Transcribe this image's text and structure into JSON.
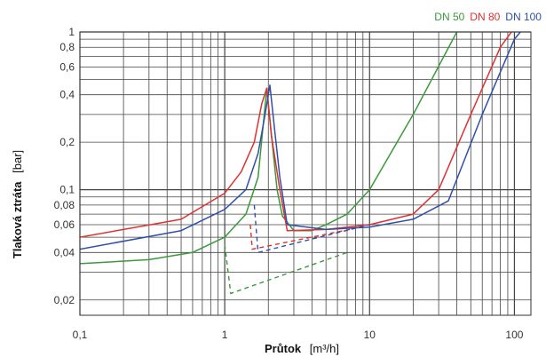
{
  "chart_data": {
    "type": "line",
    "x_scale": "log",
    "y_scale": "log",
    "xlim": [
      0.1,
      130
    ],
    "ylim": [
      0.016,
      1.0
    ],
    "grid": true,
    "legend_placement": "top-right",
    "xlabel": {
      "bold": "Průtok",
      "unit": "[m³/h]"
    },
    "ylabel": {
      "bold": "Tlaková ztráta",
      "unit": "[bar]"
    },
    "x_ticks": [
      {
        "value": 0.1,
        "label": "0,1"
      },
      {
        "value": 1,
        "label": "1"
      },
      {
        "value": 10,
        "label": "10"
      },
      {
        "value": 100,
        "label": "100"
      }
    ],
    "y_ticks": [
      {
        "value": 1.0,
        "label": "1"
      },
      {
        "value": 0.8,
        "label": "0,8"
      },
      {
        "value": 0.6,
        "label": "0,6"
      },
      {
        "value": 0.4,
        "label": "0,4"
      },
      {
        "value": 0.2,
        "label": "0,2"
      },
      {
        "value": 0.1,
        "label": "0,1"
      },
      {
        "value": 0.08,
        "label": "0,08"
      },
      {
        "value": 0.06,
        "label": "0,06"
      },
      {
        "value": 0.04,
        "label": "0,04"
      },
      {
        "value": 0.02,
        "label": "0,02"
      }
    ],
    "series": [
      {
        "name": "DN 50",
        "color": "#3a9a3a",
        "points": [
          [
            0.1,
            0.034
          ],
          [
            0.3,
            0.036
          ],
          [
            0.6,
            0.04
          ],
          [
            1.0,
            0.05
          ],
          [
            1.4,
            0.07
          ],
          [
            1.7,
            0.12
          ],
          [
            1.95,
            0.44
          ],
          [
            2.15,
            0.18
          ],
          [
            2.3,
            0.1
          ],
          [
            2.5,
            0.068
          ],
          [
            3,
            0.055
          ],
          [
            4,
            0.055
          ],
          [
            5,
            0.06
          ],
          [
            7,
            0.07
          ],
          [
            10,
            0.1
          ],
          [
            20,
            0.3
          ],
          [
            40,
            1.0
          ],
          [
            45,
            1.25
          ]
        ],
        "dashed": [
          [
            1.0,
            0.045
          ],
          [
            1.1,
            0.022
          ],
          [
            7,
            0.04
          ]
        ]
      },
      {
        "name": "DN 80",
        "color": "#e03030",
        "points": [
          [
            0.1,
            0.05
          ],
          [
            0.5,
            0.065
          ],
          [
            1.0,
            0.095
          ],
          [
            1.3,
            0.13
          ],
          [
            1.6,
            0.2
          ],
          [
            1.8,
            0.35
          ],
          [
            1.95,
            0.44
          ],
          [
            2.1,
            0.22
          ],
          [
            2.4,
            0.1
          ],
          [
            2.7,
            0.055
          ],
          [
            5,
            0.056
          ],
          [
            10,
            0.06
          ],
          [
            20,
            0.07
          ],
          [
            30,
            0.1
          ],
          [
            50,
            0.3
          ],
          [
            80,
            0.8
          ],
          [
            110,
            1.2
          ]
        ],
        "dashed": [
          [
            1.5,
            0.06
          ],
          [
            1.55,
            0.042
          ],
          [
            8,
            0.057
          ]
        ]
      },
      {
        "name": "DN 100",
        "color": "#3050a8",
        "points": [
          [
            0.1,
            0.042
          ],
          [
            0.5,
            0.055
          ],
          [
            1.0,
            0.075
          ],
          [
            1.4,
            0.1
          ],
          [
            1.7,
            0.17
          ],
          [
            1.9,
            0.3
          ],
          [
            2.05,
            0.46
          ],
          [
            2.2,
            0.25
          ],
          [
            2.4,
            0.12
          ],
          [
            2.7,
            0.06
          ],
          [
            5,
            0.056
          ],
          [
            10,
            0.058
          ],
          [
            20,
            0.065
          ],
          [
            35,
            0.085
          ],
          [
            60,
            0.3
          ],
          [
            100,
            0.9
          ],
          [
            130,
            1.2
          ]
        ],
        "dashed": [
          [
            1.6,
            0.08
          ],
          [
            1.7,
            0.04
          ],
          [
            10,
            0.06
          ]
        ]
      }
    ]
  }
}
